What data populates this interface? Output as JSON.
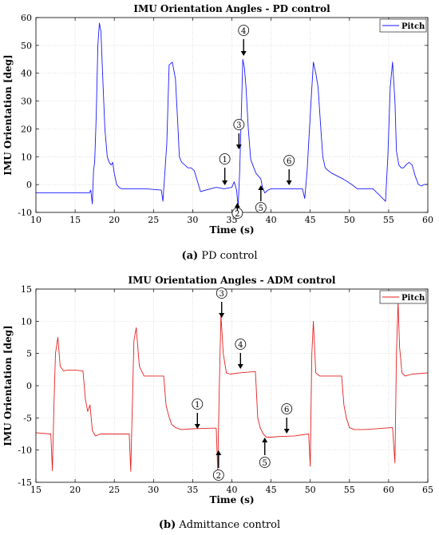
{
  "chart_data": [
    {
      "type": "line",
      "title": "IMU Orientation Angles - PD control",
      "xlabel": "Time (s)",
      "ylabel": "IMU Orientation [deg]",
      "xlim": [
        10,
        60
      ],
      "ylim": [
        -10,
        60
      ],
      "xticks": [
        10,
        15,
        20,
        25,
        30,
        35,
        40,
        45,
        50,
        55,
        60
      ],
      "yticks": [
        -10,
        0,
        10,
        20,
        30,
        40,
        50,
        60
      ],
      "grid": true,
      "legend": "top-right",
      "color": "#1a1aff",
      "series": [
        {
          "name": "Pitch",
          "x": [
            10,
            16.8,
            17.0,
            17.2,
            17.35,
            17.5,
            17.7,
            17.9,
            18.1,
            18.3,
            18.5,
            18.8,
            19.1,
            19.35,
            19.6,
            19.8,
            20.0,
            20.3,
            20.6,
            20.9,
            21.2,
            21.5,
            22,
            24,
            26.0,
            26.2,
            26.4,
            26.7,
            27.0,
            27.4,
            27.8,
            28.1,
            28.3,
            28.6,
            29.0,
            29.4,
            29.8,
            30.2,
            31,
            33.0,
            34.0,
            35.0,
            35.3,
            35.6,
            35.8,
            36.0,
            36.2,
            36.4,
            36.6,
            36.8,
            37.1,
            37.4,
            37.8,
            38.1,
            38.4,
            38.7,
            38.9,
            39.2,
            39.6,
            40.0,
            41,
            44.0,
            44.3,
            44.6,
            45.0,
            45.4,
            45.7,
            46.0,
            46.3,
            46.6,
            46.9,
            47.3,
            47.8,
            48.5,
            49.2,
            49.8,
            50.3,
            51,
            53.0,
            54.6,
            54.9,
            55.2,
            55.5,
            55.8,
            56.0,
            56.3,
            56.6,
            56.9,
            57.2,
            57.6,
            58.0,
            58.4,
            58.8,
            59.2,
            59.5,
            60
          ],
          "y": [
            -3,
            -3,
            -2,
            -7,
            5,
            8,
            25,
            50,
            58,
            55,
            40,
            20,
            10,
            8,
            7,
            8,
            4,
            0,
            -1,
            -1.5,
            -1.5,
            -1.5,
            -1.5,
            -1.5,
            -2,
            -6,
            2,
            15,
            43,
            44,
            38,
            22,
            10,
            8,
            7,
            6,
            6,
            5,
            -2.5,
            -1,
            -1.5,
            -1,
            1,
            -2,
            -8,
            5,
            25,
            45,
            42,
            35,
            20,
            9,
            6,
            4,
            3,
            2,
            -1,
            -3,
            -2,
            -1.5,
            -1.5,
            -1.5,
            -5,
            5,
            25,
            44,
            40,
            35,
            22,
            10,
            6,
            5,
            4,
            3,
            2,
            1,
            0,
            -1.5,
            -1.5,
            -6,
            10,
            35,
            44,
            30,
            12,
            7,
            6,
            6,
            7,
            8,
            7,
            3,
            0,
            -0.5,
            0,
            0
          ]
        }
      ],
      "annotations": [
        "1",
        "2",
        "3",
        "4",
        "5",
        "6"
      ]
    },
    {
      "type": "line",
      "title": "IMU Orientation Angles - ADM control",
      "xlabel": "Time (s)",
      "ylabel": "IMU Orientation [deg]",
      "xlim": [
        15,
        65
      ],
      "ylim": [
        -15,
        15
      ],
      "xticks": [
        15,
        20,
        25,
        30,
        35,
        40,
        45,
        50,
        55,
        60,
        65
      ],
      "yticks": [
        -15,
        -10,
        -5,
        0,
        5,
        10,
        15
      ],
      "grid": true,
      "legend": "top-right",
      "color": "#e62020",
      "series": [
        {
          "name": "Pitch",
          "x": [
            15,
            16.9,
            17.1,
            17.3,
            17.5,
            17.8,
            18.1,
            18.5,
            19,
            20,
            21.0,
            21.3,
            21.6,
            21.9,
            22.2,
            22.6,
            23.2,
            25,
            26.9,
            27.1,
            27.3,
            27.5,
            27.8,
            28.2,
            28.8,
            30,
            31.3,
            31.6,
            31.9,
            32.3,
            32.8,
            33.5,
            35,
            37.5,
            38.0,
            38.2,
            38.4,
            38.6,
            38.9,
            39.3,
            39.8,
            41,
            43.0,
            43.3,
            43.6,
            44.0,
            44.4,
            44.9,
            46,
            48,
            49.8,
            50.0,
            50.2,
            50.4,
            50.7,
            51.2,
            52,
            54,
            54.3,
            54.6,
            55.0,
            55.6,
            57,
            60.5,
            60.8,
            61.0,
            61.2,
            61.4,
            61.7,
            62.1,
            63,
            65
          ],
          "y": [
            -7.3,
            -7.5,
            -13.2,
            -3,
            5,
            7.5,
            3,
            2.3,
            2.4,
            2.4,
            2.3,
            -2,
            -4,
            -3,
            -7,
            -7.8,
            -7.5,
            -7.5,
            -7.5,
            -13.3,
            -3,
            7,
            9,
            3,
            1.5,
            1.5,
            1.5,
            -3,
            -4.5,
            -6,
            -6.5,
            -6.8,
            -6.7,
            -6.6,
            -6.6,
            -13.2,
            0,
            11,
            5,
            2,
            1.8,
            2.0,
            2.2,
            -5,
            -6.5,
            -7.5,
            -8,
            -8,
            -7.9,
            -7.8,
            -7.5,
            -12.5,
            5,
            10,
            2,
            1.5,
            1.5,
            1.5,
            -3,
            -5,
            -6.5,
            -6.8,
            -6.8,
            -6.5,
            -12,
            5,
            13,
            6,
            2,
            1.5,
            1.8,
            2
          ]
        }
      ],
      "annotations": [
        "1",
        "2",
        "3",
        "4",
        "5",
        "6"
      ]
    }
  ],
  "captions": [
    {
      "label": "(a)",
      "text": " PD control"
    },
    {
      "label": "(b)",
      "text": " Admittance control"
    }
  ]
}
